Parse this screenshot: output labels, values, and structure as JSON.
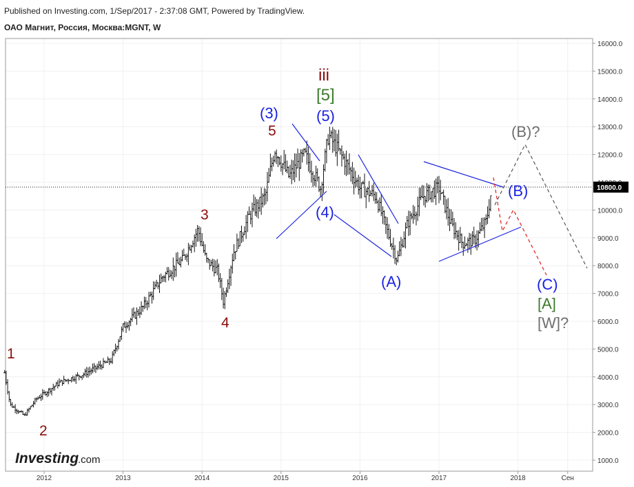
{
  "header": {
    "published": "Published on Investing.com, 1/Sep/2017 - 2:37:08 GMT, Powered by TradingView.",
    "symbol": "ОАО Магнит, Россия, Москва:MGNT, W"
  },
  "logo": {
    "main": "Investing",
    "suffix": ".com"
  },
  "colors": {
    "bars": "#111111",
    "blue": "#1a22e0",
    "red": "#8b0c0c",
    "green": "#3d7a2a",
    "gray": "#6e6e6e",
    "dashRed": "#e21c1c",
    "dashGray": "#555555"
  },
  "chart_data": {
    "type": "ohlc",
    "interval": "W",
    "grid": true,
    "ylim": [
      500,
      16300
    ],
    "x_ticks": [
      "2012",
      "2013",
      "2014",
      "2015",
      "2016",
      "2017",
      "2018",
      "Сен"
    ],
    "y_ticks": [
      "16000.0",
      "15000.0",
      "14000.0",
      "13000.0",
      "12000.0",
      "11000.0",
      "10000.0",
      "9000.0",
      "8000.0",
      "7000.0",
      "6000.0",
      "5000.0",
      "4000.0",
      "3000.0",
      "2000.0",
      "1000.0"
    ],
    "last_price": "10800.0",
    "price_path": [
      [
        2011.5,
        4150
      ],
      [
        2011.57,
        3000
      ],
      [
        2011.75,
        2600
      ],
      [
        2011.9,
        3200
      ],
      [
        2012.2,
        3800
      ],
      [
        2012.5,
        4100
      ],
      [
        2012.85,
        4600
      ],
      [
        2013.0,
        5800
      ],
      [
        2013.25,
        6500
      ],
      [
        2013.5,
        7600
      ],
      [
        2013.75,
        8200
      ],
      [
        2013.95,
        9300
      ],
      [
        2014.05,
        8200
      ],
      [
        2014.2,
        7800
      ],
      [
        2014.27,
        6700
      ],
      [
        2014.4,
        8500
      ],
      [
        2014.6,
        9800
      ],
      [
        2014.8,
        10500
      ],
      [
        2014.92,
        12200
      ],
      [
        2015.1,
        11200
      ],
      [
        2015.3,
        12000
      ],
      [
        2015.5,
        10800
      ],
      [
        2015.6,
        12700
      ],
      [
        2015.8,
        11800
      ],
      [
        2016.0,
        10800
      ],
      [
        2016.2,
        10500
      ],
      [
        2016.35,
        9200
      ],
      [
        2016.47,
        8200
      ],
      [
        2016.6,
        9500
      ],
      [
        2016.8,
        10500
      ],
      [
        2017.0,
        10800
      ],
      [
        2017.15,
        9500
      ],
      [
        2017.3,
        8800
      ],
      [
        2017.45,
        8900
      ],
      [
        2017.6,
        9600
      ],
      [
        2017.67,
        10800
      ]
    ],
    "wave_labels": [
      {
        "text": "1",
        "color": "red"
      },
      {
        "text": "2",
        "color": "red"
      },
      {
        "text": "3",
        "color": "red"
      },
      {
        "text": "4",
        "color": "red"
      },
      {
        "text": "5",
        "color": "red"
      },
      {
        "text": "iii",
        "color": "red"
      },
      {
        "text": "[5]",
        "color": "green"
      },
      {
        "text": "(3)",
        "color": "blue"
      },
      {
        "text": "(5)",
        "color": "blue"
      },
      {
        "text": "(4)",
        "color": "blue"
      },
      {
        "text": "(A)",
        "color": "blue"
      },
      {
        "text": "(B)",
        "color": "blue"
      },
      {
        "text": "(B)?",
        "color": "gray"
      },
      {
        "text": "(C)",
        "color": "blue"
      },
      {
        "text": "[A]",
        "color": "green"
      },
      {
        "text": "[W]?",
        "color": "gray"
      }
    ]
  }
}
